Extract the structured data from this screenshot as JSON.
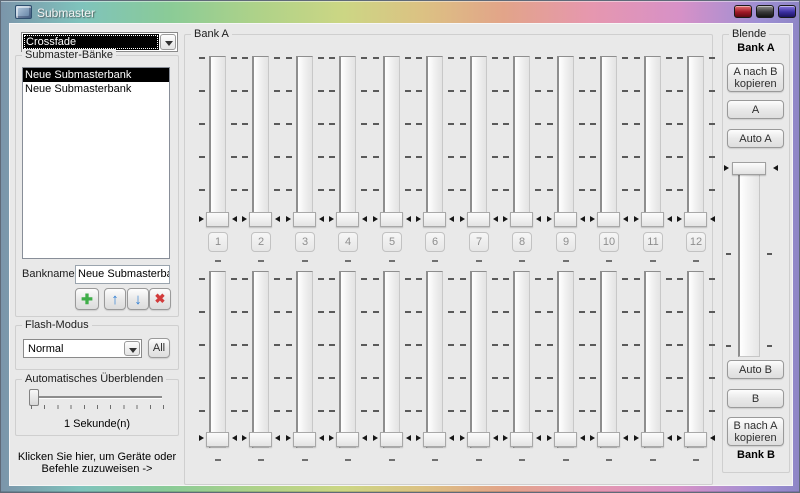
{
  "window": {
    "title": "Submaster"
  },
  "left_panel": {
    "mode_combo": {
      "value": "Crossfade"
    },
    "banks_group": {
      "label": "Submaster-Bänke",
      "items": [
        {
          "label": "Neue Submasterbank",
          "selected": true
        },
        {
          "label": "Neue Submasterbank",
          "selected": false
        }
      ],
      "bankname_label": "Bankname:",
      "bankname_value": "Neue Submasterban",
      "add_icon": "✚",
      "up_icon": "↑",
      "down_icon": "↓",
      "delete_icon": "✖"
    },
    "flash_group": {
      "label": "Flash-Modus",
      "combo_value": "Normal",
      "all_label": "All"
    },
    "fade_group": {
      "label": "Automatisches Überblenden",
      "value_text": "1 Sekunde(n)"
    },
    "assign_hint_line1": "Klicken Sie hier, um Geräte oder",
    "assign_hint_line2": "Befehle zuzuweisen ->"
  },
  "faders": {
    "group_label": "Bank A",
    "channels": [
      "1",
      "2",
      "3",
      "4",
      "5",
      "6",
      "7",
      "8",
      "9",
      "10",
      "11",
      "12"
    ]
  },
  "blende": {
    "group_label": "Blende",
    "bank_a_label": "Bank A",
    "copy_a_to_b": "A nach B kopieren",
    "a_label": "A",
    "auto_a_label": "Auto A",
    "auto_b_label": "Auto B",
    "b_label": "B",
    "copy_b_to_a": "B nach A kopieren",
    "bank_b_label": "Bank B"
  },
  "colors": {
    "selection_bg": "#000000",
    "selection_fg": "#ffffff",
    "add_green": "#3fae49",
    "arrow_blue": "#2b7cd3",
    "delete_red": "#d23b3b",
    "titlebar_left": "#7b95aa",
    "titlebar_right": "#8e86c6"
  }
}
